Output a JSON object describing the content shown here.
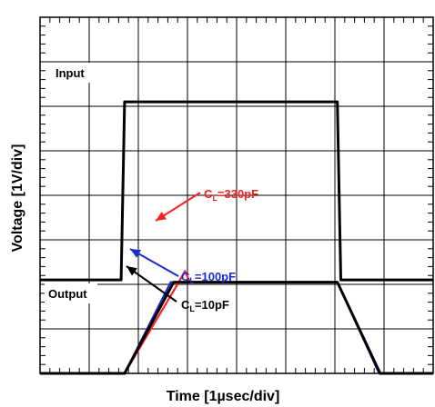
{
  "chart_data": {
    "type": "line",
    "title": "",
    "xlabel": "Time [1µsec/div]",
    "ylabel": "Voltage [1V/div]",
    "xlim": [
      0,
      8
    ],
    "ylim": [
      0,
      8
    ],
    "x_divisions": 8,
    "y_divisions": 8,
    "grid": true,
    "series": [
      {
        "name": "Input",
        "color": "#000000",
        "points": [
          [
            0,
            2.1
          ],
          [
            1.65,
            2.1
          ],
          [
            1.72,
            6.1
          ],
          [
            6.05,
            6.1
          ],
          [
            6.12,
            2.1
          ],
          [
            8,
            2.1
          ]
        ]
      },
      {
        "name": "CL=10pF",
        "color": "#000000",
        "points": [
          [
            0,
            0
          ],
          [
            1.72,
            0
          ],
          [
            2.72,
            2.05
          ],
          [
            6.05,
            2.05
          ],
          [
            6.92,
            0
          ],
          [
            8,
            0
          ]
        ]
      },
      {
        "name": "CL=100pF",
        "color": "#1b2bd4",
        "points": [
          [
            0,
            0
          ],
          [
            1.72,
            0
          ],
          [
            2.66,
            2.05
          ],
          [
            6.05,
            2.05
          ],
          [
            6.9,
            0
          ],
          [
            8,
            0
          ]
        ]
      },
      {
        "name": "CL=330pF",
        "color": "#ff2020",
        "points": [
          [
            0,
            0
          ],
          [
            1.72,
            0
          ],
          [
            2.85,
            2.1
          ],
          [
            2.95,
            2.3
          ],
          [
            3.05,
            2.05
          ],
          [
            6.05,
            2.05
          ],
          [
            6.92,
            0
          ],
          [
            8,
            0
          ]
        ]
      }
    ],
    "annotations": {
      "input": "Input",
      "output": "Output",
      "cl330": {
        "main": "C",
        "sub": "L",
        "rest": "=330pF",
        "color": "#ff2020"
      },
      "cl100": {
        "main": "C",
        "sub": "L",
        "rest": "=100pF",
        "color": "#1b2bd4"
      },
      "cl10": {
        "main": "C",
        "sub": "L",
        "rest": "=10pF",
        "color": "#000000"
      }
    }
  }
}
